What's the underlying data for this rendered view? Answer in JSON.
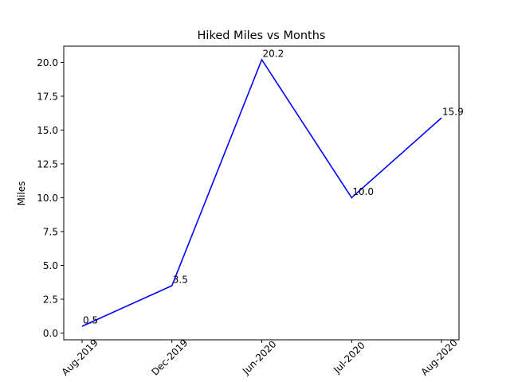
{
  "chart_data": {
    "type": "line",
    "title": "Hiked Miles vs Months",
    "xlabel": "",
    "ylabel": "Miles",
    "categories": [
      "Aug-2019",
      "Dec-2019",
      "Jun-2020",
      "Jul-2020",
      "Aug-2020"
    ],
    "series": [
      {
        "values": [
          0.5,
          3.5,
          20.2,
          10.0,
          15.9
        ],
        "color": "#0000ff"
      }
    ],
    "data_labels": [
      "0.5",
      "3.5",
      "20.2",
      "10.0",
      "15.9"
    ],
    "ylim": [
      -0.5,
      21.2
    ],
    "y_ticks": [
      "0.0",
      "2.5",
      "5.0",
      "7.5",
      "10.0",
      "12.5",
      "15.0",
      "17.5",
      "20.0"
    ],
    "x_tick_rotation_deg": 45,
    "grid": false,
    "legend": "none"
  }
}
